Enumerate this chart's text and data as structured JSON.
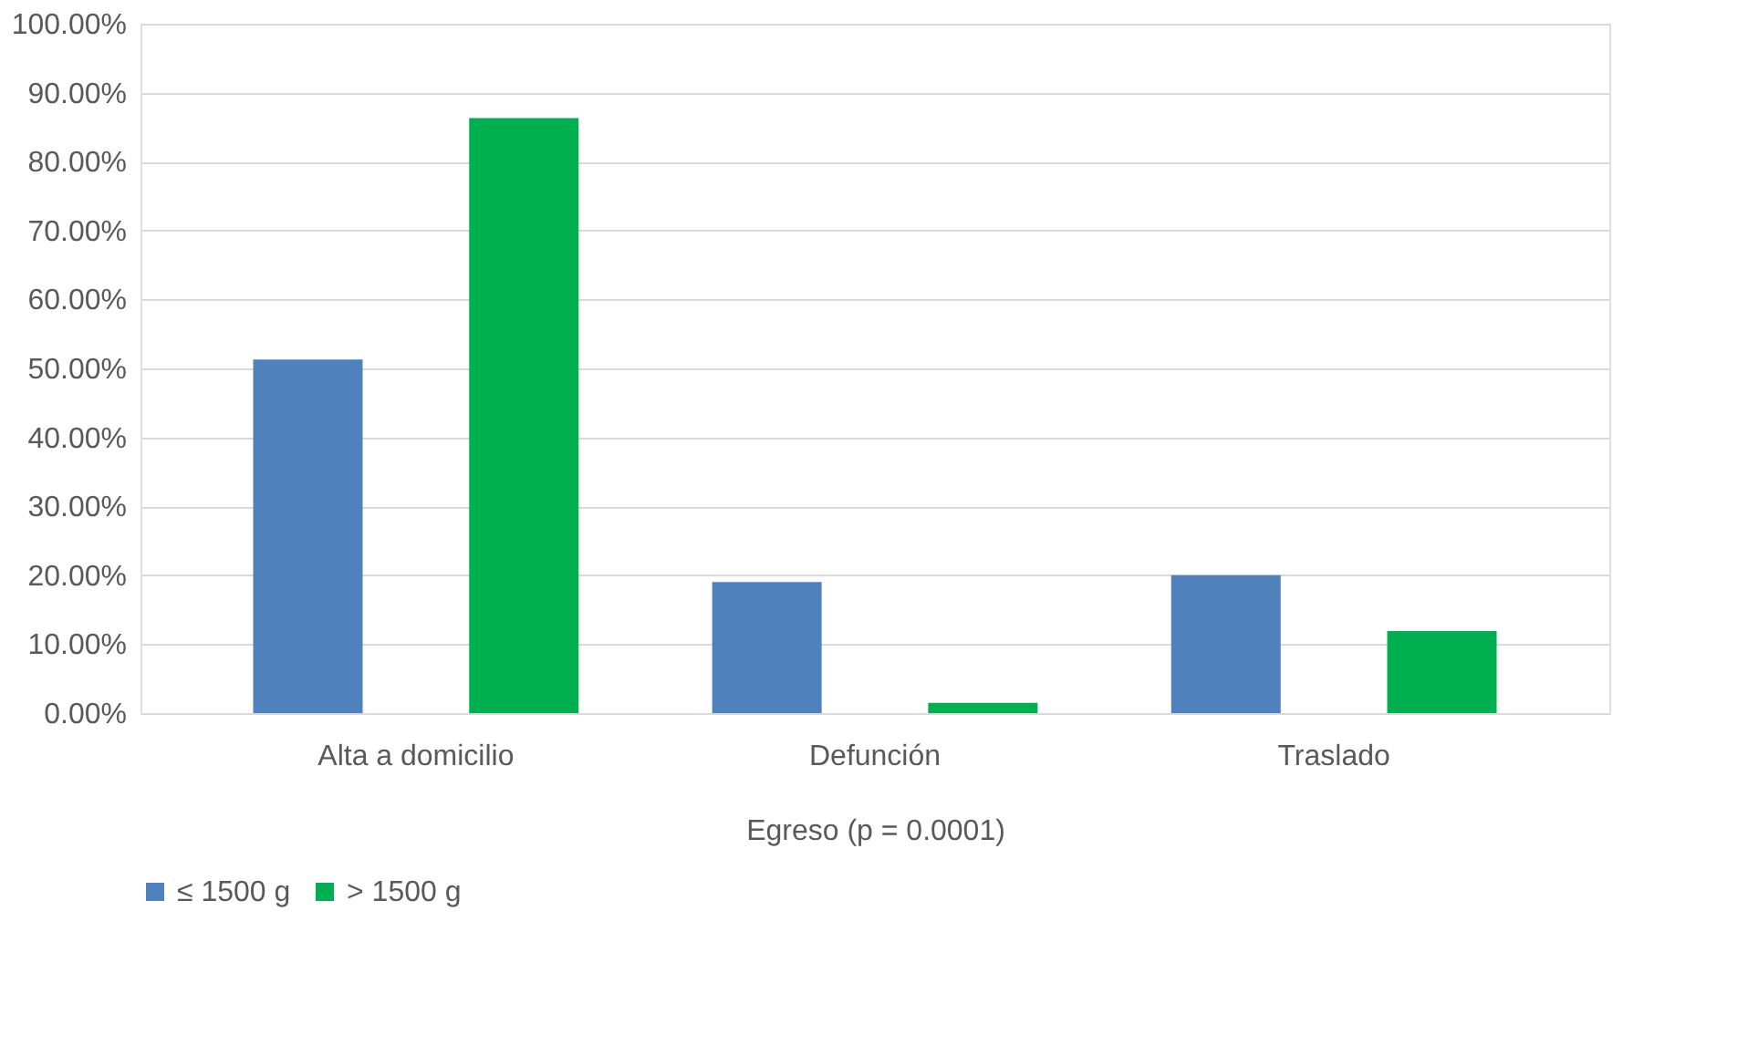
{
  "chart_data": {
    "type": "bar",
    "xlabel": "Egreso (p = 0.0001)",
    "categories": [
      "Alta a domicilio",
      "Defunción",
      "Traslado"
    ],
    "series": [
      {
        "name": "≤ 1500 g",
        "color": "#4f81bd",
        "values": [
          51.3,
          19.0,
          20.0
        ]
      },
      {
        "name": "> 1500 g",
        "color": "#00b050",
        "values": [
          86.3,
          1.5,
          11.9
        ]
      }
    ],
    "ylim": [
      0,
      100
    ],
    "yticks": [
      {
        "value": 0,
        "label": "0.00%"
      },
      {
        "value": 10,
        "label": "10.00%"
      },
      {
        "value": 20,
        "label": "20.00%"
      },
      {
        "value": 30,
        "label": "30.00%"
      },
      {
        "value": 40,
        "label": "40.00%"
      },
      {
        "value": 50,
        "label": "50.00%"
      },
      {
        "value": 60,
        "label": "60.00%"
      },
      {
        "value": 70,
        "label": "70.00%"
      },
      {
        "value": 80,
        "label": "80.00%"
      },
      {
        "value": 90,
        "label": "90.00%"
      },
      {
        "value": 100,
        "label": "100.00%"
      }
    ],
    "grid": "y",
    "legend": "bottom"
  }
}
